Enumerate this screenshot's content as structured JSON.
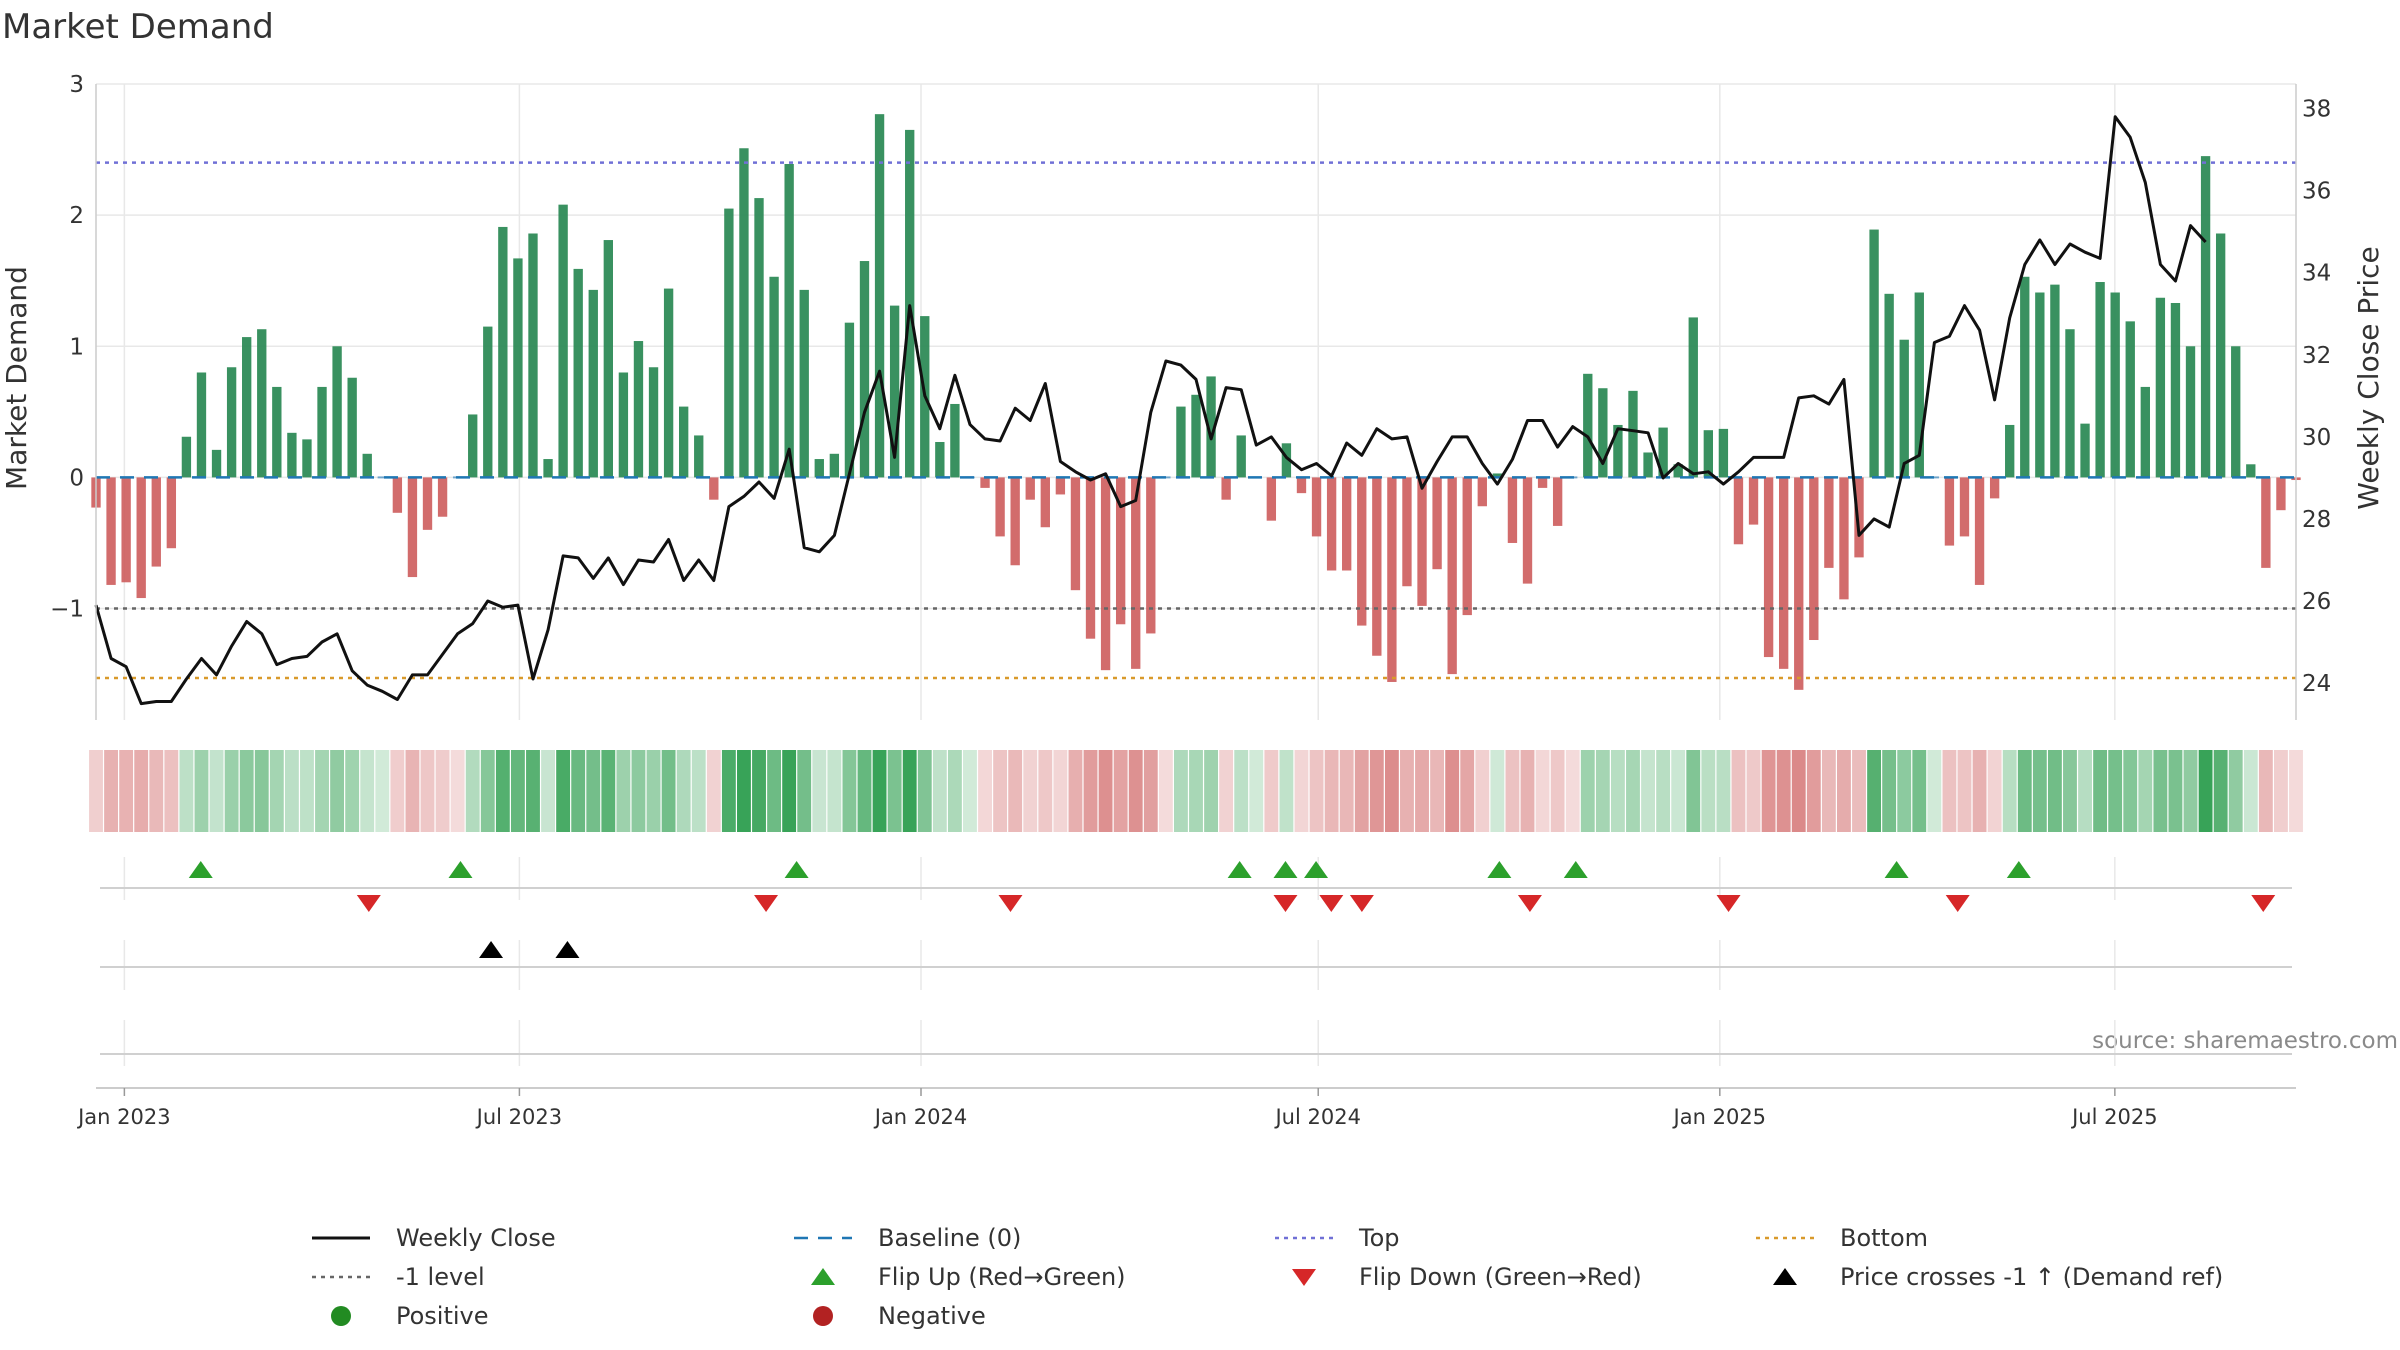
{
  "chart_data": {
    "type": "bar+line",
    "title": "Market Demand",
    "ylabel_left": "Market Demand",
    "ylabel_right": "Weekly Close Price",
    "ylim_left": [
      -1.85,
      3.0
    ],
    "ylim_right": [
      23.1,
      38.6
    ],
    "yticks_left": [
      -1,
      0,
      1,
      2,
      3
    ],
    "ytick_labels_left": [
      "−1",
      "0",
      "1",
      "2",
      "3"
    ],
    "yticks_right": [
      24,
      26,
      28,
      30,
      32,
      34,
      36,
      38
    ],
    "x_start": "2022-12-19",
    "x_end": "2025-09-22",
    "x_step": "weekly",
    "xticks": [
      {
        "date": "2023-01-01",
        "label": "Jan 2023"
      },
      {
        "date": "2023-07-01",
        "label": "Jul 2023"
      },
      {
        "date": "2024-01-01",
        "label": "Jan 2024"
      },
      {
        "date": "2024-07-01",
        "label": "Jul 2024"
      },
      {
        "date": "2025-01-01",
        "label": "Jan 2025"
      },
      {
        "date": "2025-07-01",
        "label": "Jul 2025"
      }
    ],
    "levels": {
      "top": 2.4,
      "bottom": -1.53,
      "minus_one": -1,
      "baseline": 0
    },
    "demand": [
      -0.23,
      -0.82,
      -0.8,
      -0.92,
      -0.68,
      -0.54,
      0.31,
      0.8,
      0.21,
      0.84,
      1.07,
      1.13,
      0.69,
      0.34,
      0.29,
      0.69,
      1.0,
      0.76,
      0.18,
      0,
      -0.27,
      -0.76,
      -0.4,
      -0.3,
      0,
      0.48,
      1.15,
      1.91,
      1.67,
      1.86,
      0.14,
      2.08,
      1.59,
      1.43,
      1.81,
      0.8,
      1.04,
      0.84,
      1.44,
      0.54,
      0.32,
      -0.17,
      2.05,
      2.51,
      2.13,
      1.53,
      2.39,
      1.43,
      0.14,
      0.18,
      1.18,
      1.65,
      2.77,
      1.31,
      2.65,
      1.23,
      0.27,
      0.56,
      0,
      -0.08,
      -0.45,
      -0.67,
      -0.17,
      -0.38,
      -0.13,
      -0.86,
      -1.23,
      -1.47,
      -1.12,
      -1.46,
      -1.19,
      0,
      0.54,
      0.63,
      0.77,
      -0.17,
      0.32,
      0,
      -0.33,
      0.26,
      -0.12,
      -0.45,
      -0.71,
      -0.71,
      -1.13,
      -1.36,
      -1.56,
      -0.83,
      -0.98,
      -0.7,
      -1.5,
      -1.05,
      -0.22,
      0.03,
      -0.5,
      -0.81,
      -0.08,
      -0.37,
      0,
      0.79,
      0.68,
      0.4,
      0.66,
      0.19,
      0.38,
      0.1,
      1.22,
      0.36,
      0.37,
      -0.51,
      -0.36,
      -1.37,
      -1.46,
      -1.62,
      -1.24,
      -0.69,
      -0.93,
      -0.61,
      1.89,
      1.4,
      1.05,
      1.41,
      0,
      -0.52,
      -0.45,
      -0.82,
      -0.16,
      0.4,
      1.53,
      1.41,
      1.47,
      1.13,
      0.41,
      1.49,
      1.41,
      1.19,
      0.69,
      1.37,
      1.33,
      1.0,
      2.45,
      1.86,
      1.0,
      0.1,
      -0.69,
      -0.25,
      -0.02
    ],
    "weekly_close": [
      25.9,
      24.6,
      24.4,
      23.5,
      23.55,
      23.55,
      24.1,
      24.6,
      24.2,
      24.9,
      25.5,
      25.2,
      24.45,
      24.6,
      24.65,
      25.0,
      25.2,
      24.3,
      23.95,
      23.8,
      23.6,
      24.2,
      24.2,
      24.7,
      25.2,
      25.45,
      26.0,
      25.85,
      25.9,
      24.1,
      25.3,
      27.1,
      27.05,
      26.55,
      27.05,
      26.4,
      27.0,
      26.95,
      27.5,
      26.5,
      27.0,
      26.5,
      28.3,
      28.55,
      28.9,
      28.5,
      29.7,
      27.3,
      27.2,
      27.6,
      29.1,
      30.6,
      31.6,
      29.5,
      33.2,
      31.0,
      30.2,
      31.5,
      30.3,
      29.95,
      29.9,
      30.7,
      30.4,
      31.3,
      29.4,
      29.15,
      28.95,
      29.1,
      28.3,
      28.45,
      30.6,
      31.85,
      31.75,
      31.4,
      29.95,
      31.2,
      31.15,
      29.8,
      30.0,
      29.5,
      29.2,
      29.35,
      29.05,
      29.85,
      29.55,
      30.2,
      29.95,
      30.0,
      28.75,
      29.4,
      30.0,
      30.0,
      29.35,
      28.85,
      29.45,
      30.4,
      30.4,
      29.75,
      30.25,
      30.0,
      29.35,
      30.2,
      30.15,
      30.1,
      29.0,
      29.35,
      29.1,
      29.15,
      28.85,
      29.15,
      29.5,
      29.5,
      29.5,
      30.95,
      31.0,
      30.8,
      31.4,
      27.6,
      28.0,
      27.8,
      29.35,
      29.55,
      32.3,
      32.45,
      33.2,
      32.6,
      30.9,
      32.9,
      34.2,
      34.8,
      34.2,
      34.7,
      34.5,
      34.35,
      37.8,
      37.3,
      36.2,
      34.2,
      33.8,
      35.15,
      34.75
    ],
    "color_strip_label": "demand intensity strip",
    "flip_up_dates": [
      "2023-02-05",
      "2023-06-04",
      "2023-11-05",
      "2024-05-26",
      "2024-06-16",
      "2024-06-30",
      "2024-09-22",
      "2024-10-27",
      "2025-03-23",
      "2025-05-18"
    ],
    "flip_down_dates": [
      "2023-04-23",
      "2023-10-22",
      "2024-02-11",
      "2024-06-16",
      "2024-07-07",
      "2024-07-21",
      "2024-10-06",
      "2025-01-05",
      "2025-04-20",
      "2025-09-07"
    ],
    "price_cross_dates": [
      "2023-06-18",
      "2023-07-23"
    ],
    "source": "source: sharemaestro.com",
    "legend": [
      {
        "key": "weekly-close",
        "label": "Weekly Close"
      },
      {
        "key": "baseline",
        "label": "Baseline (0)"
      },
      {
        "key": "top",
        "label": "Top"
      },
      {
        "key": "bottom",
        "label": "Bottom"
      },
      {
        "key": "minus-one",
        "label": "-1 level"
      },
      {
        "key": "flip-up",
        "label": "Flip Up (Red→Green)"
      },
      {
        "key": "flip-down",
        "label": "Flip Down (Green→Red)"
      },
      {
        "key": "price-cross",
        "label": "Price crosses -1 ↑ (Demand ref)"
      },
      {
        "key": "positive",
        "label": "Positive"
      },
      {
        "key": "negative",
        "label": "Negative"
      }
    ],
    "colors": {
      "positive_bar": "#2e8b57",
      "negative_bar": "#cd5c5c",
      "close_line": "#111111",
      "baseline": "#1f77b4",
      "top": "#7070d6",
      "bottom": "#d99a2b",
      "minus_one": "#666666",
      "flip_up": "#2ca02c",
      "flip_down": "#d62728",
      "price_cross": "#000000",
      "positive_dot": "#228b22",
      "negative_dot": "#b22222",
      "grid": "#e8e8e8"
    }
  }
}
